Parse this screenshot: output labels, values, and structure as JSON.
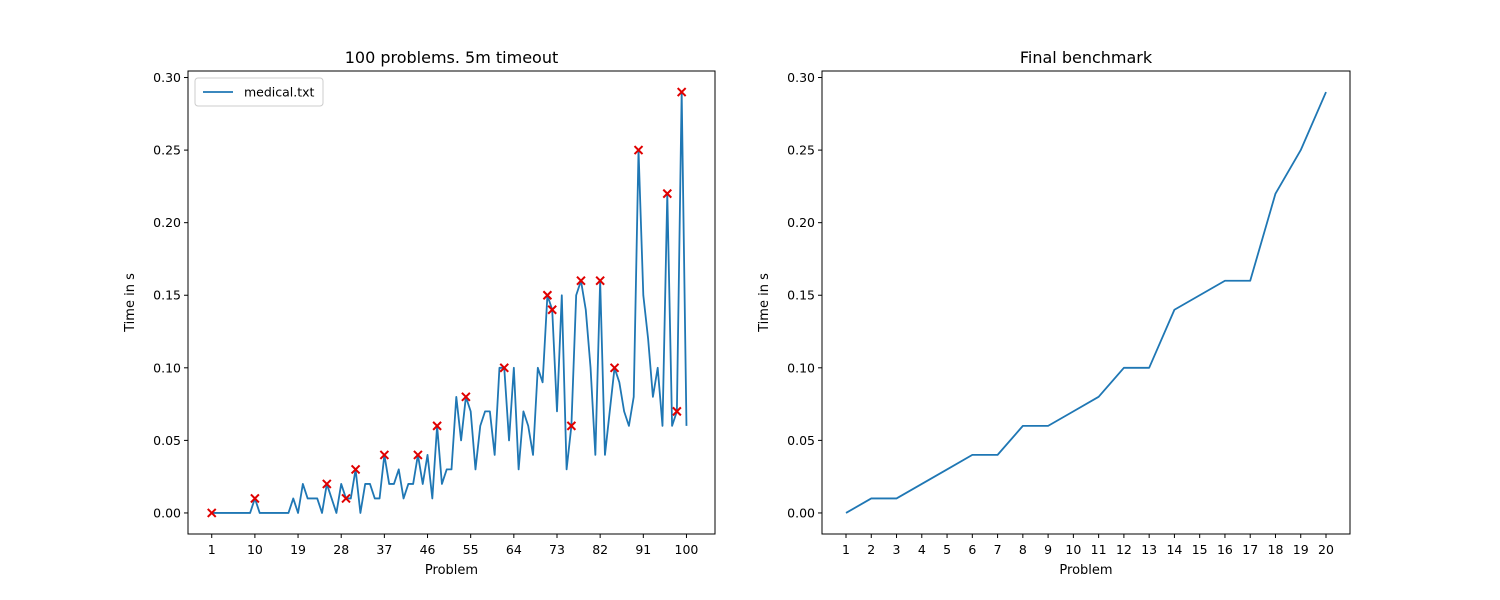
{
  "colors": {
    "line": "#1f77b4",
    "marker": "#e00000"
  },
  "chart_data": [
    {
      "type": "line",
      "title": "100 problems. 5m timeout",
      "xlabel": "Problem",
      "ylabel": "Time in s",
      "xlim": [
        -3.95,
        105.95
      ],
      "ylim": [
        -0.0145,
        0.3045
      ],
      "xticks": [
        1,
        10,
        19,
        28,
        37,
        46,
        55,
        64,
        73,
        82,
        91,
        100
      ],
      "yticks": [
        "0.00",
        "0.05",
        "0.10",
        "0.15",
        "0.20",
        "0.25",
        "0.30"
      ],
      "yticks_values": [
        0,
        0.05,
        0.1,
        0.15,
        0.2,
        0.25,
        0.3
      ],
      "legend": {
        "placement": "top-left",
        "entries": [
          "medical.txt"
        ]
      },
      "series": [
        {
          "name": "medical.txt",
          "x": [
            1,
            2,
            3,
            4,
            5,
            6,
            7,
            8,
            9,
            10,
            11,
            12,
            13,
            14,
            15,
            16,
            17,
            18,
            19,
            20,
            21,
            22,
            23,
            24,
            25,
            26,
            27,
            28,
            29,
            30,
            31,
            32,
            33,
            34,
            35,
            36,
            37,
            38,
            39,
            40,
            41,
            42,
            43,
            44,
            45,
            46,
            47,
            48,
            49,
            50,
            51,
            52,
            53,
            54,
            55,
            56,
            57,
            58,
            59,
            60,
            61,
            62,
            63,
            64,
            65,
            66,
            67,
            68,
            69,
            70,
            71,
            72,
            73,
            74,
            75,
            76,
            77,
            78,
            79,
            80,
            81,
            82,
            83,
            84,
            85,
            86,
            87,
            88,
            89,
            90,
            91,
            92,
            93,
            94,
            95,
            96,
            97,
            98,
            99,
            100
          ],
          "y": [
            0,
            0,
            0,
            0,
            0,
            0,
            0,
            0,
            0,
            0.01,
            0,
            0,
            0,
            0,
            0,
            0,
            0,
            0.01,
            0,
            0.02,
            0.01,
            0.01,
            0.01,
            0,
            0.02,
            0.01,
            0,
            0.02,
            0.01,
            0.01,
            0.03,
            0,
            0.02,
            0.02,
            0.01,
            0.01,
            0.04,
            0.02,
            0.02,
            0.03,
            0.01,
            0.02,
            0.02,
            0.04,
            0.02,
            0.04,
            0.01,
            0.06,
            0.02,
            0.03,
            0.03,
            0.08,
            0.05,
            0.08,
            0.07,
            0.03,
            0.06,
            0.07,
            0.07,
            0.04,
            0.1,
            0.1,
            0.05,
            0.1,
            0.03,
            0.07,
            0.06,
            0.04,
            0.1,
            0.09,
            0.15,
            0.14,
            0.07,
            0.15,
            0.03,
            0.06,
            0.15,
            0.16,
            0.14,
            0.1,
            0.04,
            0.16,
            0.04,
            0.07,
            0.1,
            0.09,
            0.07,
            0.06,
            0.08,
            0.25,
            0.15,
            0.12,
            0.08,
            0.1,
            0.06,
            0.22,
            0.06,
            0.07,
            0.29,
            0.06
          ]
        }
      ],
      "markers": {
        "x": [
          1,
          10,
          25,
          29,
          31,
          37,
          44,
          48,
          54,
          62,
          71,
          72,
          76,
          78,
          82,
          85,
          90,
          96,
          98,
          99
        ],
        "y": [
          0,
          0.01,
          0.02,
          0.01,
          0.03,
          0.04,
          0.04,
          0.06,
          0.08,
          0.1,
          0.15,
          0.14,
          0.06,
          0.16,
          0.16,
          0.1,
          0.25,
          0.22,
          0.07,
          0.29
        ]
      }
    },
    {
      "type": "line",
      "title": "Final benchmark",
      "xlabel": "Problem",
      "ylabel": "Time in s",
      "xlim": [
        0.05,
        20.95
      ],
      "ylim": [
        -0.0145,
        0.3045
      ],
      "xticks": [
        1,
        2,
        3,
        4,
        5,
        6,
        7,
        8,
        9,
        10,
        11,
        12,
        13,
        14,
        15,
        16,
        17,
        18,
        19,
        20
      ],
      "yticks": [
        "0.00",
        "0.05",
        "0.10",
        "0.15",
        "0.20",
        "0.25",
        "0.30"
      ],
      "yticks_values": [
        0,
        0.05,
        0.1,
        0.15,
        0.2,
        0.25,
        0.3
      ],
      "series": [
        {
          "x": [
            1,
            2,
            3,
            4,
            5,
            6,
            7,
            8,
            9,
            10,
            11,
            12,
            13,
            14,
            15,
            16,
            17,
            18,
            19,
            20
          ],
          "y": [
            0,
            0.01,
            0.01,
            0.02,
            0.03,
            0.04,
            0.04,
            0.06,
            0.06,
            0.07,
            0.08,
            0.1,
            0.1,
            0.14,
            0.15,
            0.16,
            0.16,
            0.22,
            0.25,
            0.29
          ]
        }
      ]
    }
  ]
}
